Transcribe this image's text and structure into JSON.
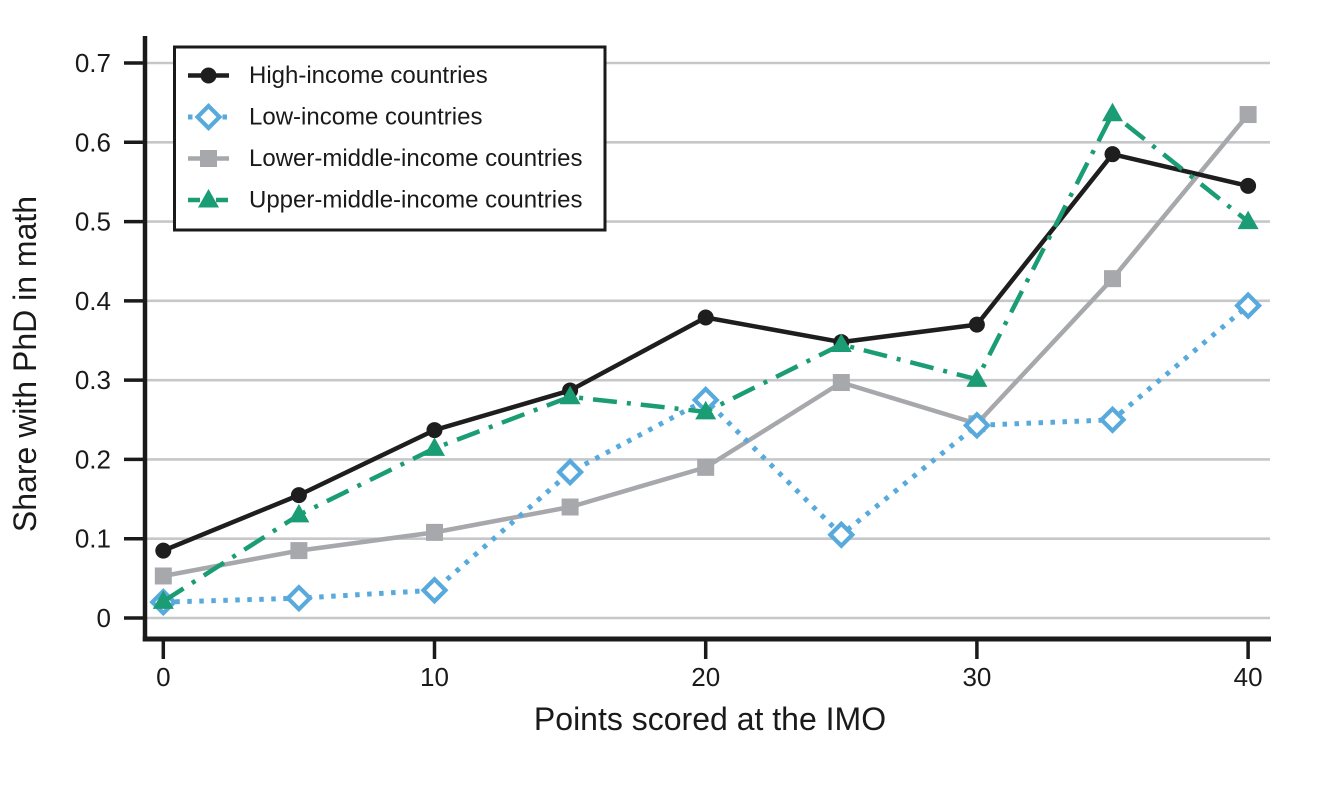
{
  "figure": {
    "background": "#ffffff",
    "x_axis_title": "Points scored at the IMO",
    "y_axis_title": "Share with PhD in math"
  },
  "chart_data": {
    "type": "line",
    "title": "",
    "xlabel": "Points scored at the IMO",
    "ylabel": "Share with PhD in math",
    "xlim": [
      0,
      40
    ],
    "ylim": [
      0,
      0.7
    ],
    "grid": "horizontal",
    "legend_position": "top-left-inside",
    "x_ticks": [
      0,
      10,
      20,
      30,
      40
    ],
    "x_tick_labels": [
      "0",
      "10",
      "20",
      "30",
      "40"
    ],
    "y_ticks": [
      0,
      0.1,
      0.2,
      0.3,
      0.4,
      0.5,
      0.6,
      0.7
    ],
    "y_tick_labels": [
      "0",
      "0.1",
      "0.2",
      "0.3",
      "0.4",
      "0.5",
      "0.6",
      "0.7"
    ],
    "x": [
      0,
      5,
      10,
      15,
      20,
      25,
      30,
      35,
      40
    ],
    "series": [
      {
        "name": "High-income countries",
        "color": "#1e1e1e",
        "line_style": "solid",
        "marker": "filled-circle",
        "values": [
          0.085,
          0.155,
          0.237,
          0.287,
          0.379,
          0.348,
          0.37,
          0.585,
          0.545
        ]
      },
      {
        "name": "Low-income countries",
        "color": "#58aadd",
        "line_style": "dotted",
        "marker": "open-diamond",
        "values": [
          0.02,
          0.025,
          0.035,
          0.184,
          0.275,
          0.105,
          0.243,
          0.25,
          0.394
        ]
      },
      {
        "name": "Lower-middle-income countries",
        "color": "#a6a8ab",
        "line_style": "solid",
        "marker": "filled-square",
        "values": [
          0.053,
          0.085,
          0.108,
          0.14,
          0.19,
          0.297,
          0.245,
          0.428,
          0.635
        ]
      },
      {
        "name": "Upper-middle-income countries",
        "color": "#1a9c74",
        "line_style": "dash-dot",
        "marker": "filled-triangle",
        "values": [
          0.021,
          0.13,
          0.214,
          0.279,
          0.26,
          0.345,
          0.301,
          0.636,
          0.5
        ]
      }
    ],
    "style": {
      "grid_color": "#c6c7c8",
      "axis_color": "#1a1a1a",
      "legend_border_color": "#1a1a1a",
      "legend_background": "#ffffff"
    }
  }
}
